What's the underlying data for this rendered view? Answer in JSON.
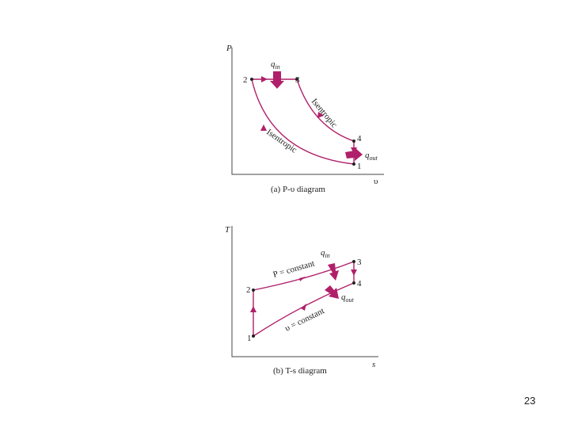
{
  "pv": {
    "axis_y": "P",
    "axis_x": "υ",
    "points": [
      "1",
      "2",
      "3",
      "4"
    ],
    "q_in": {
      "symbol": "q",
      "sub": "in"
    },
    "q_out": {
      "symbol": "q",
      "sub": "out"
    },
    "process_labels": [
      "Isentropic",
      "Isentropic"
    ],
    "caption": "(a) P-υ diagram"
  },
  "ts": {
    "axis_y": "T",
    "axis_x": "s",
    "points": [
      "1",
      "2",
      "3",
      "4"
    ],
    "q_in": {
      "symbol": "q",
      "sub": "in"
    },
    "q_out": {
      "symbol": "q",
      "sub": "out"
    },
    "process_labels": [
      "P = constant",
      "υ = constant"
    ],
    "caption": "(b) T-s diagram"
  },
  "page_number": "23"
}
